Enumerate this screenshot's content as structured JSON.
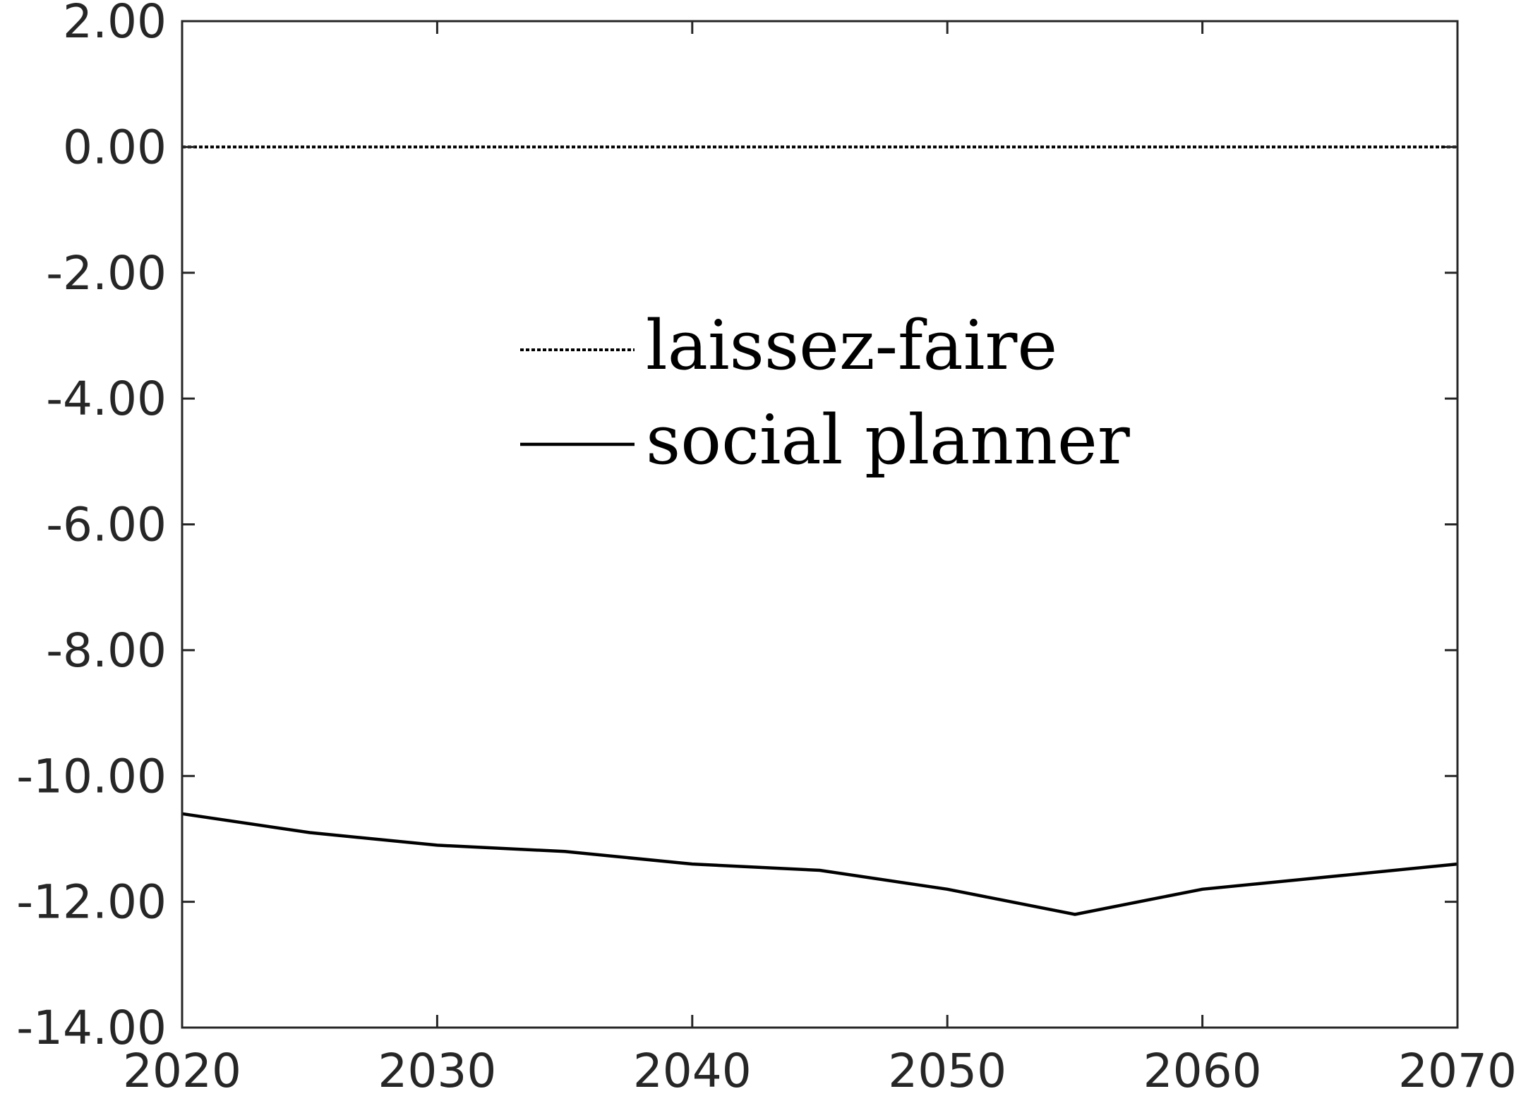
{
  "chart_data": {
    "type": "line",
    "title": "",
    "xlabel": "",
    "ylabel": "",
    "x": [
      2020,
      2025,
      2030,
      2035,
      2040,
      2045,
      2050,
      2055,
      2060,
      2065,
      2070
    ],
    "xlim": [
      2020,
      2070
    ],
    "ylim": [
      -14,
      2
    ],
    "x_ticks": [
      "2020",
      "2030",
      "2040",
      "2050",
      "2060",
      "2070"
    ],
    "y_ticks": [
      "2.00",
      "0.00",
      "-2.00",
      "-4.00",
      "-6.00",
      "-8.00",
      "-10.00",
      "-12.00",
      "-14.00"
    ],
    "grid": false,
    "legend_position": "center",
    "series": [
      {
        "name": "laissez-faire",
        "style": "dotted",
        "color": "#000000",
        "values": [
          0,
          0,
          0,
          0,
          0,
          0,
          0,
          0,
          0,
          0,
          0
        ]
      },
      {
        "name": "social planner",
        "style": "solid",
        "color": "#000000",
        "values": [
          -10.6,
          -10.9,
          -11.1,
          -11.2,
          -11.4,
          -11.5,
          -11.8,
          -12.2,
          -11.8,
          -11.6,
          -11.4
        ]
      }
    ]
  }
}
